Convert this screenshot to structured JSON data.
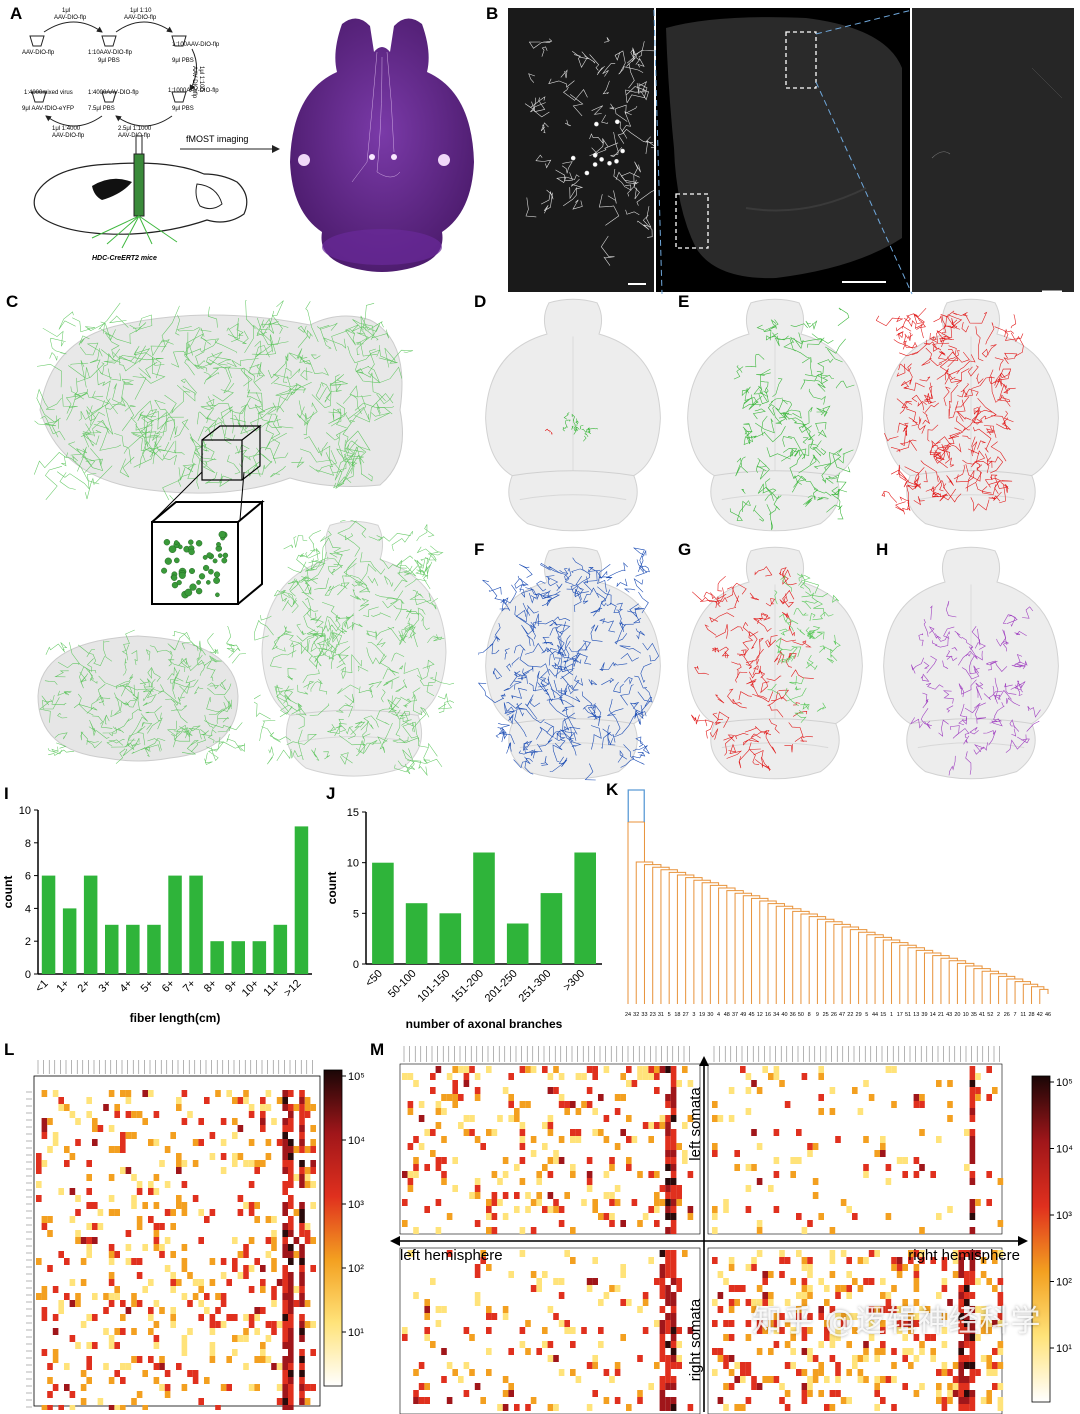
{
  "panels": {
    "A": "A",
    "B": "B",
    "C": "C",
    "D": "D",
    "E": "E",
    "F": "F",
    "G": "G",
    "H": "H",
    "I": "I",
    "J": "J",
    "K": "K",
    "L": "L",
    "M": "M"
  },
  "schematic": {
    "step1_top": "1μl",
    "step1_bot": "AAV-DIO-flp",
    "step2_top": "1μl 1:10",
    "step2_bot": "AAV-DIO-flp",
    "tube1": "AAV-DIO-flp",
    "tube2a": "1:10AAV-DIO-flp",
    "tube2b": "9μl PBS",
    "tube3a": "1:100AAV-DIO-flp",
    "tube3b": "9μl PBS",
    "side_a": "1μl 1:100",
    "side_b": "AAV-DIO-flp",
    "tube4a": "1:1000AAV-DIO-flp",
    "tube4b": "9μl PBS",
    "tube5a": "1:4000AAV-DIO-flp",
    "tube5b": "7.5μl PBS",
    "tube6a": "1:4000mixed virus",
    "tube6b": "9μl AAV-fDIO-eYFP",
    "step5_top": "2.5μl 1:1000",
    "step5_bot": "AAV-DIO-flp",
    "step6_top": "1μl 1:4000",
    "step6_bot": "AAV-DIO-flp",
    "fmost": "fMOST imaging",
    "mouse": "HDC-CreERT2 mice"
  },
  "colors": {
    "green": "#3fb83f",
    "red": "#e11a1a",
    "blue": "#1f4fb5",
    "purple": "#a040c0",
    "orange": "#e8923a",
    "cluster_blue": "#5b9bd5"
  },
  "chart_data": [
    {
      "type": "bar",
      "panel": "I",
      "categories": [
        "<1",
        "1+",
        "2+",
        "3+",
        "4+",
        "5+",
        "6+",
        "7+",
        "8+",
        "9+",
        "10+",
        "11+",
        ">12"
      ],
      "values": [
        6,
        4,
        6,
        3,
        3,
        3,
        6,
        6,
        2,
        2,
        2,
        3,
        9
      ],
      "xlabel": "fiber length(cm)",
      "ylabel": "count",
      "ylim": [
        0,
        10
      ],
      "yticks": [
        "0",
        "2",
        "4",
        "6",
        "8",
        "10"
      ],
      "color": "#2fb43a"
    },
    {
      "type": "bar",
      "panel": "J",
      "categories": [
        "<50",
        "50-100",
        "101-150",
        "151-200",
        "201-250",
        "251-300",
        ">300"
      ],
      "values": [
        10,
        6,
        5,
        11,
        4,
        7,
        11
      ],
      "xlabel": "number of axonal branches",
      "ylabel": "count",
      "ylim": [
        0,
        15
      ],
      "yticks": [
        "0",
        "5",
        "10",
        "15"
      ],
      "color": "#2fb43a"
    },
    {
      "type": "heatmap",
      "panel": "L",
      "colorbar_ticks": [
        "10⁵",
        "10⁴",
        "10³",
        "10²",
        "10¹"
      ],
      "color_scale": "log",
      "colormap": [
        "#ffffff",
        "#ffe37a",
        "#f3a020",
        "#e0301e",
        "#a0161a",
        "#2a0a0a"
      ]
    },
    {
      "type": "heatmap",
      "panel": "M",
      "labels": {
        "left_somata": "left somata",
        "right_somata": "right somata",
        "left_hemisphere": "left hemisphere",
        "right_hemisphere": "right hemisphere"
      },
      "colorbar_ticks": [
        "10⁵",
        "10⁴",
        "10³",
        "10²",
        "10¹"
      ],
      "color_scale": "log"
    },
    {
      "type": "dendrogram",
      "panel": "K",
      "leaves": [
        "24",
        "32",
        "33",
        "23",
        "31",
        "5",
        "18",
        "27",
        "3",
        "19",
        "30",
        "4",
        "48",
        "37",
        "49",
        "45",
        "12",
        "16",
        "34",
        "40",
        "36",
        "50",
        "8",
        "9",
        "25",
        "26",
        "47",
        "22",
        "29",
        "5",
        "44",
        "15",
        "1",
        "17",
        "51",
        "13",
        "39",
        "14",
        "21",
        "43",
        "20",
        "10",
        "35",
        "41",
        "52",
        "2",
        "26",
        "7",
        "11",
        "28",
        "42",
        "46"
      ]
    }
  ],
  "watermark": "知乎 @逻辑神经科学"
}
